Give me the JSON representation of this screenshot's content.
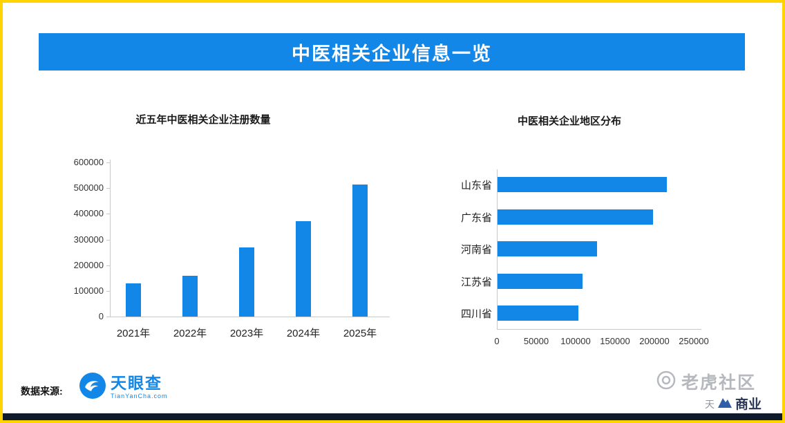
{
  "theme": {
    "accent": "#1287E8",
    "border": "#FFD400",
    "axis": "#C8C8C8",
    "text_dark": "#1A1A1A",
    "watermark_gray": "#A9ADB3",
    "watermark_navy": "#1D2B4F"
  },
  "header": {
    "title": "中医相关企业信息一览"
  },
  "chart_data": [
    {
      "type": "bar",
      "title": "近五年中医相关企业注册数量",
      "categories": [
        "2021年",
        "2022年",
        "2023年",
        "2024年",
        "2025年"
      ],
      "values": [
        130000,
        160000,
        270000,
        370000,
        515000
      ],
      "ylim": [
        0,
        600000
      ],
      "yticks": [
        0,
        100000,
        200000,
        300000,
        400000,
        500000,
        600000
      ],
      "bar_color": "#1287E8",
      "grid": false,
      "legend": false
    },
    {
      "type": "bar-horizontal",
      "title": "中医相关企业地区分布",
      "categories": [
        "山东省",
        "广东省",
        "河南省",
        "江苏省",
        "四川省"
      ],
      "values": [
        215000,
        197000,
        126000,
        108000,
        103000
      ],
      "xlim": [
        0,
        250000
      ],
      "xticks": [
        0,
        50000,
        100000,
        150000,
        200000,
        250000
      ],
      "bar_color": "#1287E8",
      "grid": false,
      "legend": false
    }
  ],
  "footer": {
    "source_label": "数据来源:",
    "logo_name": "天眼查",
    "logo_domain": "TianYanCha.com"
  },
  "watermarks": {
    "community": "老虎社区",
    "partial_left": "天",
    "partial_right": "商业"
  }
}
